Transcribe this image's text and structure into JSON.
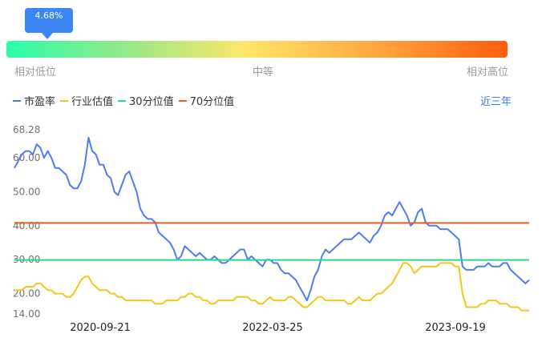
{
  "percentile_badge": "4.68%",
  "scale": {
    "low": "相对低位",
    "mid": "中等",
    "high": "相对高位"
  },
  "legend": [
    {
      "label": "市盈率",
      "color": "#4a7ff0"
    },
    {
      "label": "行业估值",
      "color": "#f5c61b"
    },
    {
      "label": "30分位值",
      "color": "#27d98b"
    },
    {
      "label": "70分位值",
      "color": "#f35b14"
    }
  ],
  "range_button": "近三年",
  "chart_data": {
    "type": "line",
    "y_ticks": [
      "68.28",
      "60.00",
      "50.00",
      "40.00",
      "30.00",
      "20.00",
      "14.00"
    ],
    "x_ticks": [
      "2020-09-21",
      "2022-03-25",
      "2023-09-19"
    ],
    "ylim": [
      14,
      68.28
    ],
    "series": [
      {
        "name": "市盈率",
        "color": "#4a7ff0",
        "values": [
          57,
          59,
          61,
          62,
          62,
          61,
          64,
          63,
          60,
          62,
          60,
          57,
          57,
          56,
          55,
          52,
          51,
          51,
          53,
          58,
          66,
          62,
          61,
          58,
          58,
          55,
          54,
          50,
          49,
          52,
          55,
          56,
          53,
          50,
          45,
          43,
          42,
          42,
          41,
          38,
          37,
          36,
          35,
          33,
          30,
          31,
          34,
          33,
          32,
          31,
          32,
          31,
          30,
          30,
          31,
          30,
          29,
          29,
          30,
          31,
          32,
          33,
          33,
          30,
          31,
          30,
          29,
          28,
          30,
          30,
          29,
          29,
          27,
          26,
          26,
          25,
          24,
          22,
          20,
          18,
          21,
          25,
          27,
          31,
          33,
          32,
          33,
          34,
          35,
          36,
          36,
          36,
          37,
          38,
          37,
          36,
          35,
          37,
          38,
          40,
          43,
          44,
          43,
          45,
          47,
          45,
          43,
          40,
          41,
          44,
          45,
          41,
          40,
          40,
          40,
          39,
          39,
          39,
          38,
          37,
          36,
          28,
          27,
          27,
          27,
          28,
          28,
          28,
          29,
          28,
          28,
          28,
          29,
          29,
          27,
          26,
          25,
          24,
          23,
          24
        ]
      },
      {
        "name": "行业估值",
        "color": "#f5c61b",
        "values": [
          21,
          21,
          21,
          22,
          22,
          22,
          23,
          23,
          22,
          21,
          21,
          20,
          20,
          20,
          19,
          19,
          20,
          22,
          24,
          25,
          25,
          23,
          22,
          21,
          21,
          21,
          20,
          20,
          19,
          19,
          18,
          18,
          18,
          18,
          18,
          18,
          18,
          18,
          17,
          17,
          17,
          18,
          18,
          18,
          18,
          19,
          19,
          20,
          20,
          19,
          19,
          18,
          18,
          17,
          17,
          18,
          18,
          18,
          18,
          18,
          19,
          19,
          19,
          19,
          18,
          18,
          17,
          17,
          18,
          19,
          18,
          18,
          18,
          18,
          19,
          19,
          18,
          17,
          16,
          16,
          17,
          18,
          19,
          19,
          18,
          18,
          18,
          18,
          18,
          18,
          17,
          17,
          18,
          19,
          18,
          18,
          18,
          19,
          20,
          20,
          21,
          22,
          23,
          25,
          27,
          29,
          29,
          28,
          26,
          27,
          28,
          28,
          28,
          28,
          28,
          29,
          29,
          29,
          29,
          28,
          28,
          20,
          16,
          16,
          16,
          16,
          17,
          17,
          18,
          18,
          18,
          17,
          17,
          17,
          16,
          16,
          16,
          15,
          15,
          15
        ]
      },
      {
        "name": "30分位值",
        "color": "#27d98b",
        "values": [
          29.9
        ]
      },
      {
        "name": "70分位值",
        "color": "#f35b14",
        "values": [
          40.8
        ]
      }
    ]
  }
}
